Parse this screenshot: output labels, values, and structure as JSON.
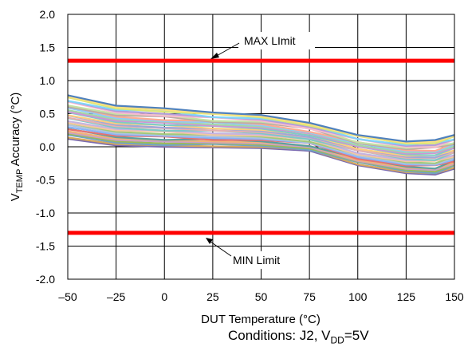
{
  "chart_data": {
    "type": "line",
    "xlabel": "DUT Temperature (°C)",
    "ylabel_main": "V",
    "ylabel_sub": "TEMP",
    "ylabel_rest": " Accuracy (°C)",
    "xlim": [
      -50,
      150
    ],
    "ylim": [
      -2.0,
      2.0
    ],
    "x_ticks": [
      "–50",
      "–25",
      "0",
      "25",
      "50",
      "75",
      "100",
      "125",
      "150"
    ],
    "y_ticks": [
      "2.0",
      "1.5",
      "1.0",
      "0.5",
      "0.0",
      "-0.5",
      "-1.0",
      "-1.5",
      "-2.0"
    ],
    "grid": true,
    "limit_color": "#ff0000",
    "limits": [
      {
        "name": "MAX LImit",
        "value": 1.3
      },
      {
        "name": "MIN Limit",
        "value": -1.3
      }
    ],
    "annotations": {
      "max_label": "MAX LImit",
      "min_label": "MIN Limit"
    },
    "envelope": {
      "x": [
        -50,
        -25,
        0,
        25,
        50,
        75,
        100,
        125,
        140,
        150
      ],
      "upper": [
        0.78,
        0.62,
        0.58,
        0.52,
        0.48,
        0.36,
        0.18,
        0.08,
        0.1,
        0.18
      ],
      "lower": [
        0.12,
        0.02,
        0.0,
        -0.01,
        -0.02,
        -0.06,
        -0.28,
        -0.4,
        -0.42,
        -0.33
      ]
    },
    "series_colors": [
      "#7a6ab0",
      "#d6a95f",
      "#6fa3c9",
      "#9bbb59",
      "#c9a0c9",
      "#f0b27a",
      "#5aa0a0",
      "#e57373",
      "#8ab4f8",
      "#b0c4de",
      "#a3c97a",
      "#f4c7a1",
      "#c6b3e0",
      "#7ec8c8",
      "#e6b0b0",
      "#9fa8da",
      "#ffcc80",
      "#80cbc4",
      "#ce93d8",
      "#a5d6a7",
      "#90caf9",
      "#ffab91",
      "#bcaaa4",
      "#c5e1a5",
      "#f8bbd0",
      "#b39ddb",
      "#81d4fa",
      "#dce775",
      "#ffe082",
      "#4f81bd"
    ],
    "series_count": 30
  },
  "conditions": {
    "prefix": "Conditions: J2, V",
    "sub": "DD",
    "suffix": "=5V"
  }
}
